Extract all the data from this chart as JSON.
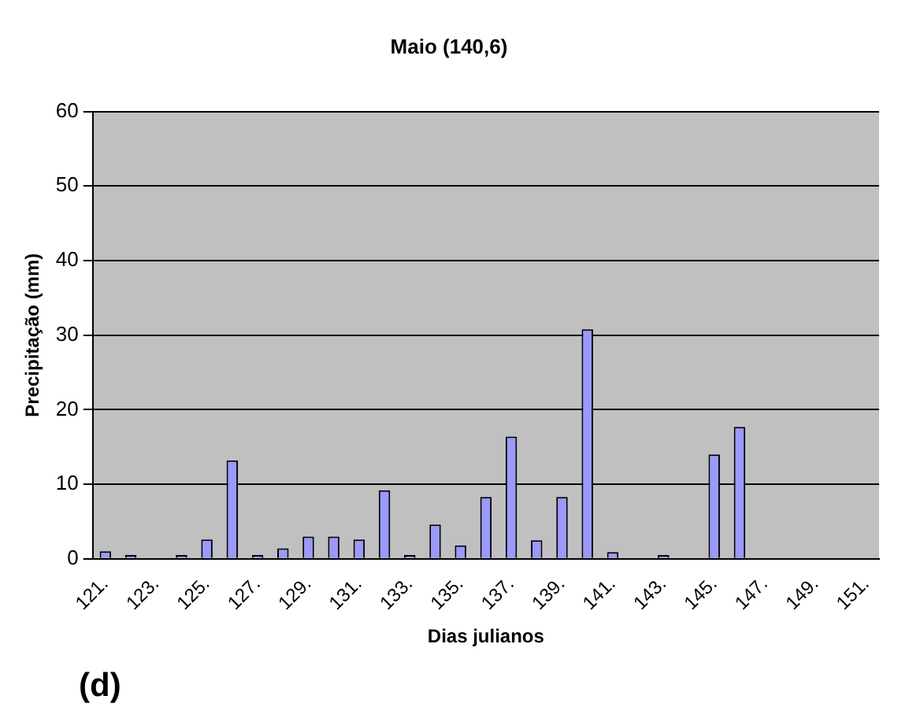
{
  "chart_data": {
    "type": "bar",
    "title": "Maio (140,6)",
    "xlabel": "Dias julianos",
    "ylabel": "Precipitação (mm)",
    "categories": [
      "121.",
      null,
      "123.",
      null,
      "125.",
      null,
      "127.",
      null,
      "129.",
      null,
      "131.",
      null,
      "133.",
      null,
      "135.",
      null,
      "137.",
      null,
      "139.",
      null,
      "141.",
      null,
      "143.",
      null,
      "145.",
      null,
      "147.",
      null,
      "149.",
      null,
      "151."
    ],
    "series": [
      {
        "color": "#9999ff",
        "values": [
          1,
          0.5,
          0,
          0.5,
          2.6,
          13.2,
          0.5,
          1.4,
          3,
          3,
          2.6,
          9.2,
          0.5,
          4.6,
          1.8,
          8.3,
          16.4,
          2.5,
          8.3,
          30.8,
          0.9,
          0,
          0.5,
          0,
          14,
          17.7,
          0,
          0,
          0,
          0,
          0
        ]
      }
    ],
    "ylim": [
      0,
      60
    ],
    "yticks": [
      0,
      10,
      20,
      30,
      40,
      50,
      60
    ],
    "grid": "y",
    "legend": false,
    "annotations": [
      "(d)"
    ]
  }
}
